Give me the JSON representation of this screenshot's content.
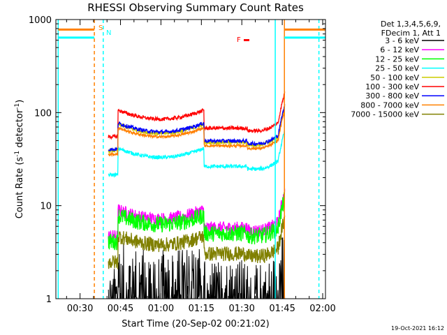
{
  "chart_data": {
    "type": "line",
    "title": "RHESSI Observing Summary Count Rates",
    "xlabel": "Start Time (20-Sep-02 00:21:02)",
    "ylabel_main": "Count Rate (s",
    "ylabel_sup1": "-1",
    "ylabel_mid": " detector",
    "ylabel_sup2": "-1",
    "ylabel_end": ")",
    "y_scale": "log",
    "ylim": [
      1,
      1000
    ],
    "xlim_minutes": [
      21.03,
      121.03
    ],
    "x_ticks": [
      {
        "m": 30,
        "label": "00:30"
      },
      {
        "m": 45,
        "label": "00:45"
      },
      {
        "m": 60,
        "label": "01:00"
      },
      {
        "m": 75,
        "label": "01:15"
      },
      {
        "m": 90,
        "label": "01:30"
      },
      {
        "m": 105,
        "label": "01:45"
      },
      {
        "m": 120,
        "label": "02:00"
      }
    ],
    "y_ticks": [
      {
        "v": 1,
        "label": "1"
      },
      {
        "v": 10,
        "label": "10"
      },
      {
        "v": 100,
        "label": "100"
      },
      {
        "v": 1000,
        "label": "1000"
      }
    ],
    "legend_header": [
      "Det 1,3,4,5,6,9,",
      "FDecim 1, Att 1"
    ],
    "series": [
      {
        "name": "3 - 6 keV",
        "color": "#000000",
        "level": 1.5,
        "noise": 0.35,
        "spiky": true
      },
      {
        "name": "6 - 12 keV",
        "color": "#ff00ff",
        "level": 7.2,
        "noise": 0.07
      },
      {
        "name": "12 - 25 keV",
        "color": "#00ff00",
        "level": 6.3,
        "noise": 0.09
      },
      {
        "name": "25 - 50 keV",
        "color": "#00ffff",
        "level": 33,
        "noise": 0.02
      },
      {
        "name": "50 - 100 keV",
        "color": "#cccc00",
        "level": 60,
        "noise": 0.02
      },
      {
        "name": "100 - 300 keV",
        "color": "#ff0000",
        "level": 85,
        "noise": 0.02
      },
      {
        "name": "300 - 800 keV",
        "color": "#0000ff",
        "level": 62,
        "noise": 0.02
      },
      {
        "name": "800 - 7000 keV",
        "color": "#ff8000",
        "level": 55,
        "noise": 0.015
      },
      {
        "name": "7000 - 15000 keV",
        "color": "#808000",
        "level": 3.8,
        "noise": 0.08
      }
    ],
    "data_window_minutes": [
      40.5,
      106.0
    ],
    "vlines": [
      {
        "m": 21.9,
        "color": "#00ffff",
        "dash": false
      },
      {
        "m": 35.3,
        "color": "#ff8000",
        "dash": true
      },
      {
        "m": 38.6,
        "color": "#00ffff",
        "dash": true
      },
      {
        "m": 102.4,
        "color": "#00ffff",
        "dash": false
      },
      {
        "m": 105.8,
        "color": "#ff8000",
        "dash": false
      },
      {
        "m": 118.6,
        "color": "#00ffff",
        "dash": true
      }
    ],
    "marker_S": "S",
    "marker_N": "N",
    "marker_F": "F",
    "timestamp": "19-Oct-2021 16:12"
  }
}
